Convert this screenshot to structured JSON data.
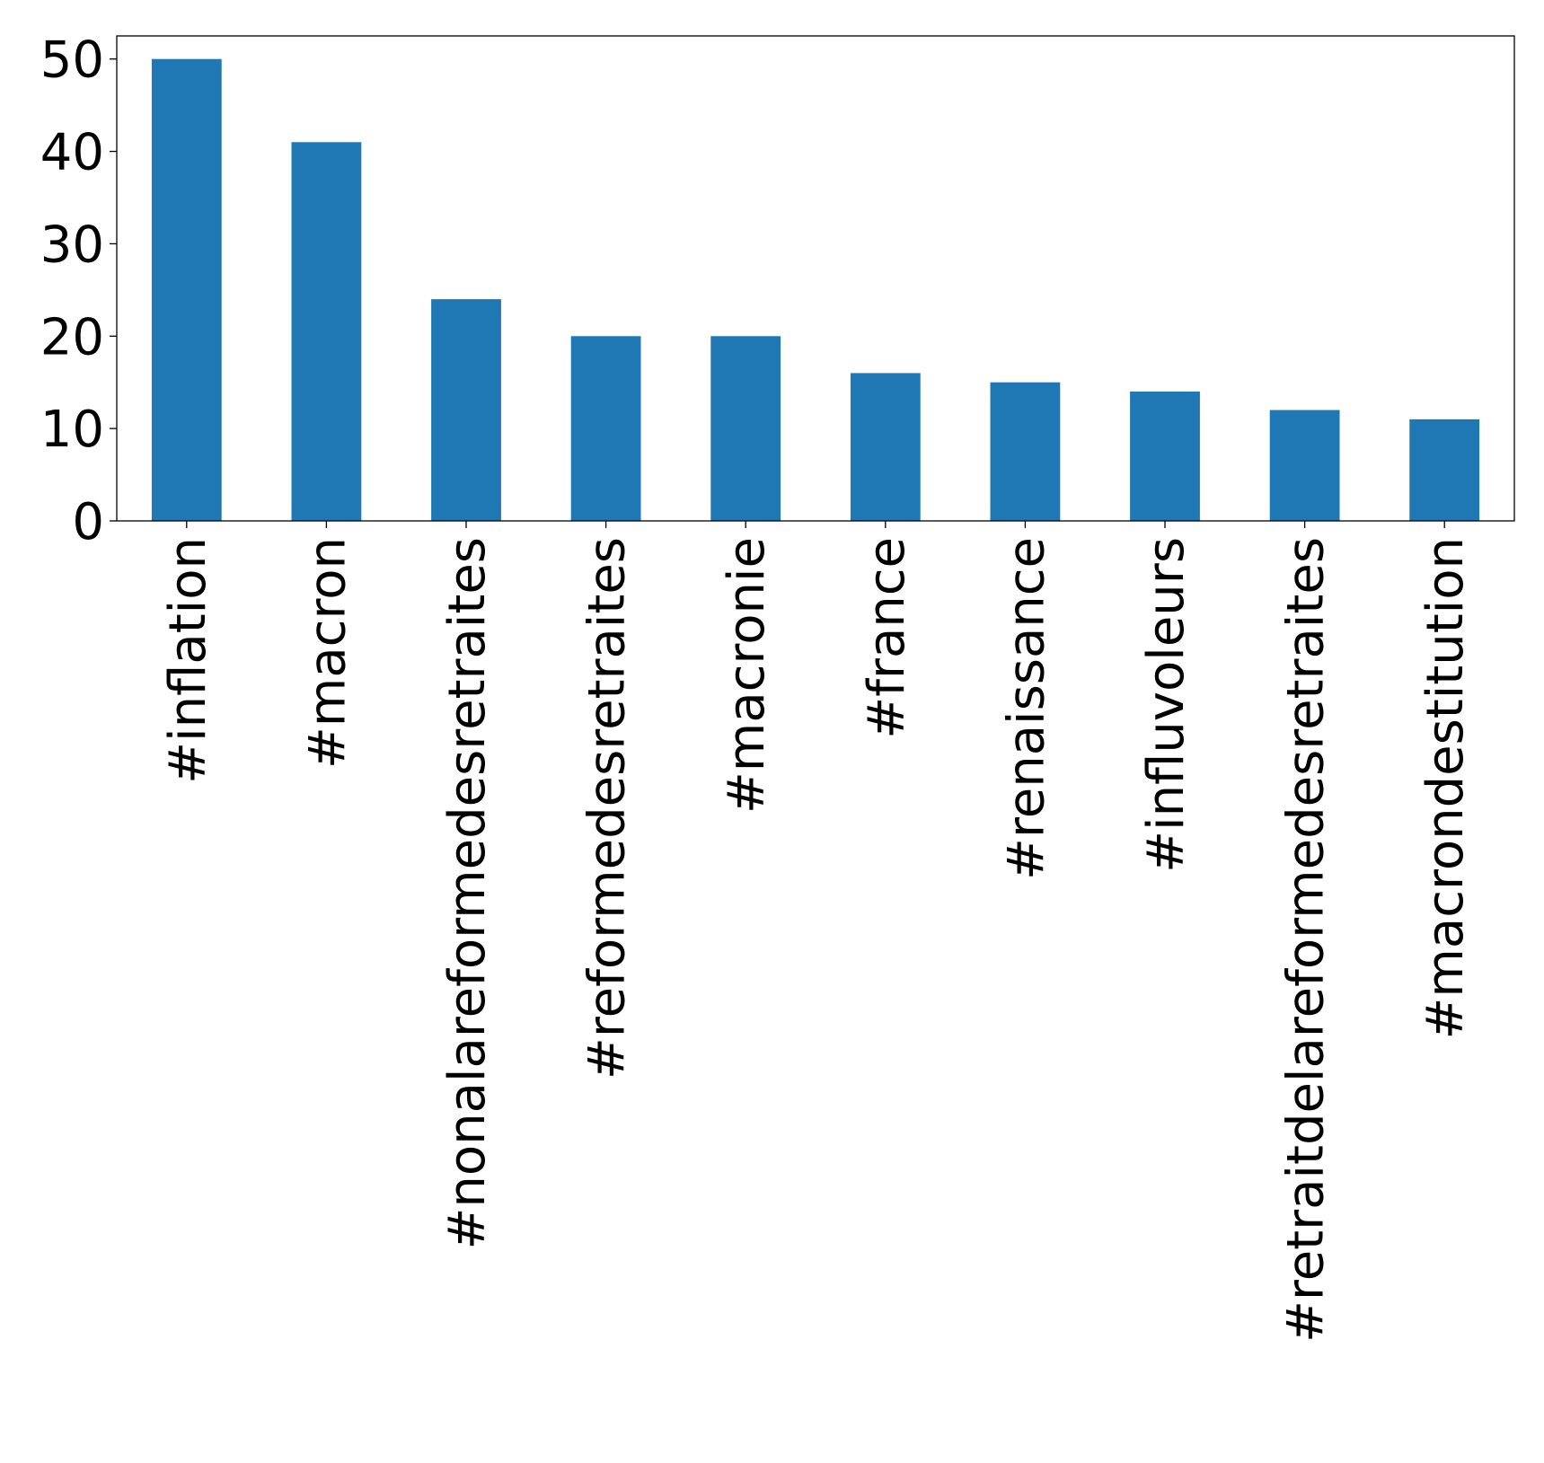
{
  "chart_data": {
    "type": "bar",
    "categories": [
      "#inflation",
      "#macron",
      "#nonalareformedesretraites",
      "#reformedesretraites",
      "#macronie",
      "#france",
      "#renaissance",
      "#influvoleurs",
      "#retraitdelareformedesretraites",
      "#macrondestitution"
    ],
    "values": [
      50,
      41,
      24,
      20,
      20,
      16,
      15,
      14,
      12,
      11
    ],
    "title": "",
    "xlabel": "",
    "ylabel": "",
    "ylim": [
      0,
      52.5
    ],
    "yticks": [
      "0",
      "10",
      "20",
      "30",
      "40",
      "50"
    ],
    "bar_color": "#1f77b4",
    "grid": false,
    "legend": "none"
  }
}
